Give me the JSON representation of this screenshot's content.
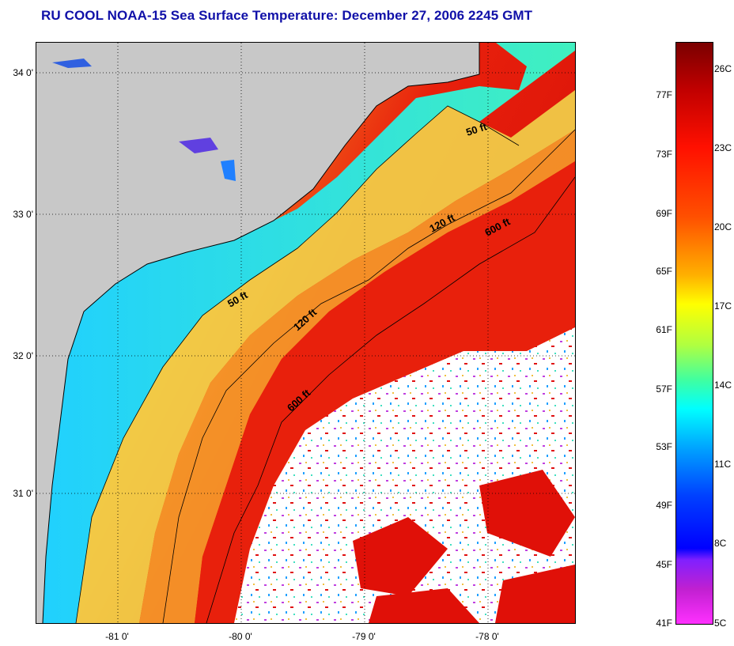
{
  "title": "RU COOL  NOAA-15  Sea Surface Temperature:  December 27, 2006 2245 GMT",
  "lat_labels": [
    "34 0'",
    "33 0'",
    "32 0'",
    "31 0'"
  ],
  "lon_labels": [
    "-81 0'",
    "-80 0'",
    "-79 0'",
    "-78 0'"
  ],
  "contour_labels": [
    "50 ft",
    "120 ft",
    "600 ft",
    "50 ft",
    "120 ft",
    "600 ft"
  ],
  "colorbar": {
    "f_labels": [
      "77F",
      "73F",
      "69F",
      "65F",
      "61F",
      "57F",
      "53F",
      "49F",
      "45F",
      "41F"
    ],
    "c_labels": [
      "26C",
      "23C",
      "20C",
      "17C",
      "14C",
      "11C",
      "8C",
      "5C"
    ]
  },
  "colors": {
    "land": "#c8c8c8",
    "title": "#1010a8",
    "coastal_cyan": "#30e8e0",
    "shelf_yellow": "#f2d44a",
    "shelf_orange": "#f59a2a",
    "gulfstream_red": "#e8200c",
    "cloud": "#ffffff"
  }
}
